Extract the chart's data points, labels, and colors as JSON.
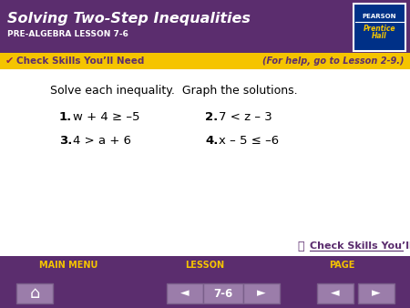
{
  "title": "Solving Two-Step Inequalities",
  "subtitle": "PRE-ALGEBRA LESSON 7-6",
  "header_bg": "#5b2d6e",
  "yellow_bar_bg": "#f5c400",
  "yellow_bar_text": "Check Skills You’ll Need",
  "yellow_bar_right": "(For help, go to Lesson 2-9.)",
  "main_bg": "#ffffff",
  "body_text": "Solve each inequality.  Graph the solutions.",
  "problems": [
    {
      "num": "1.",
      "eq": "w + 4 ≥ –5"
    },
    {
      "num": "2.",
      "eq": "7 < z – 3"
    },
    {
      "num": "3.",
      "eq": "4 > a + 6"
    },
    {
      "num": "4.",
      "eq": "x – 5 ≤ –6"
    }
  ],
  "footer_bg": "#5b2d6e",
  "footer_items": [
    "MAIN MENU",
    "LESSON",
    "PAGE"
  ],
  "footer_page": "7-6",
  "nav_bg": "#9b7daa",
  "nav_border": "#7a5f8a",
  "pearson_box_bg": "#003087",
  "link_text": "Check Skills You’ll Need",
  "checkmark_color": "#8b2252",
  "title_color": "white",
  "subtitle_color": "white",
  "yellow_text_color": "#5b2d6e",
  "footer_label_color": "#f5c400",
  "nav_text_color": "white"
}
